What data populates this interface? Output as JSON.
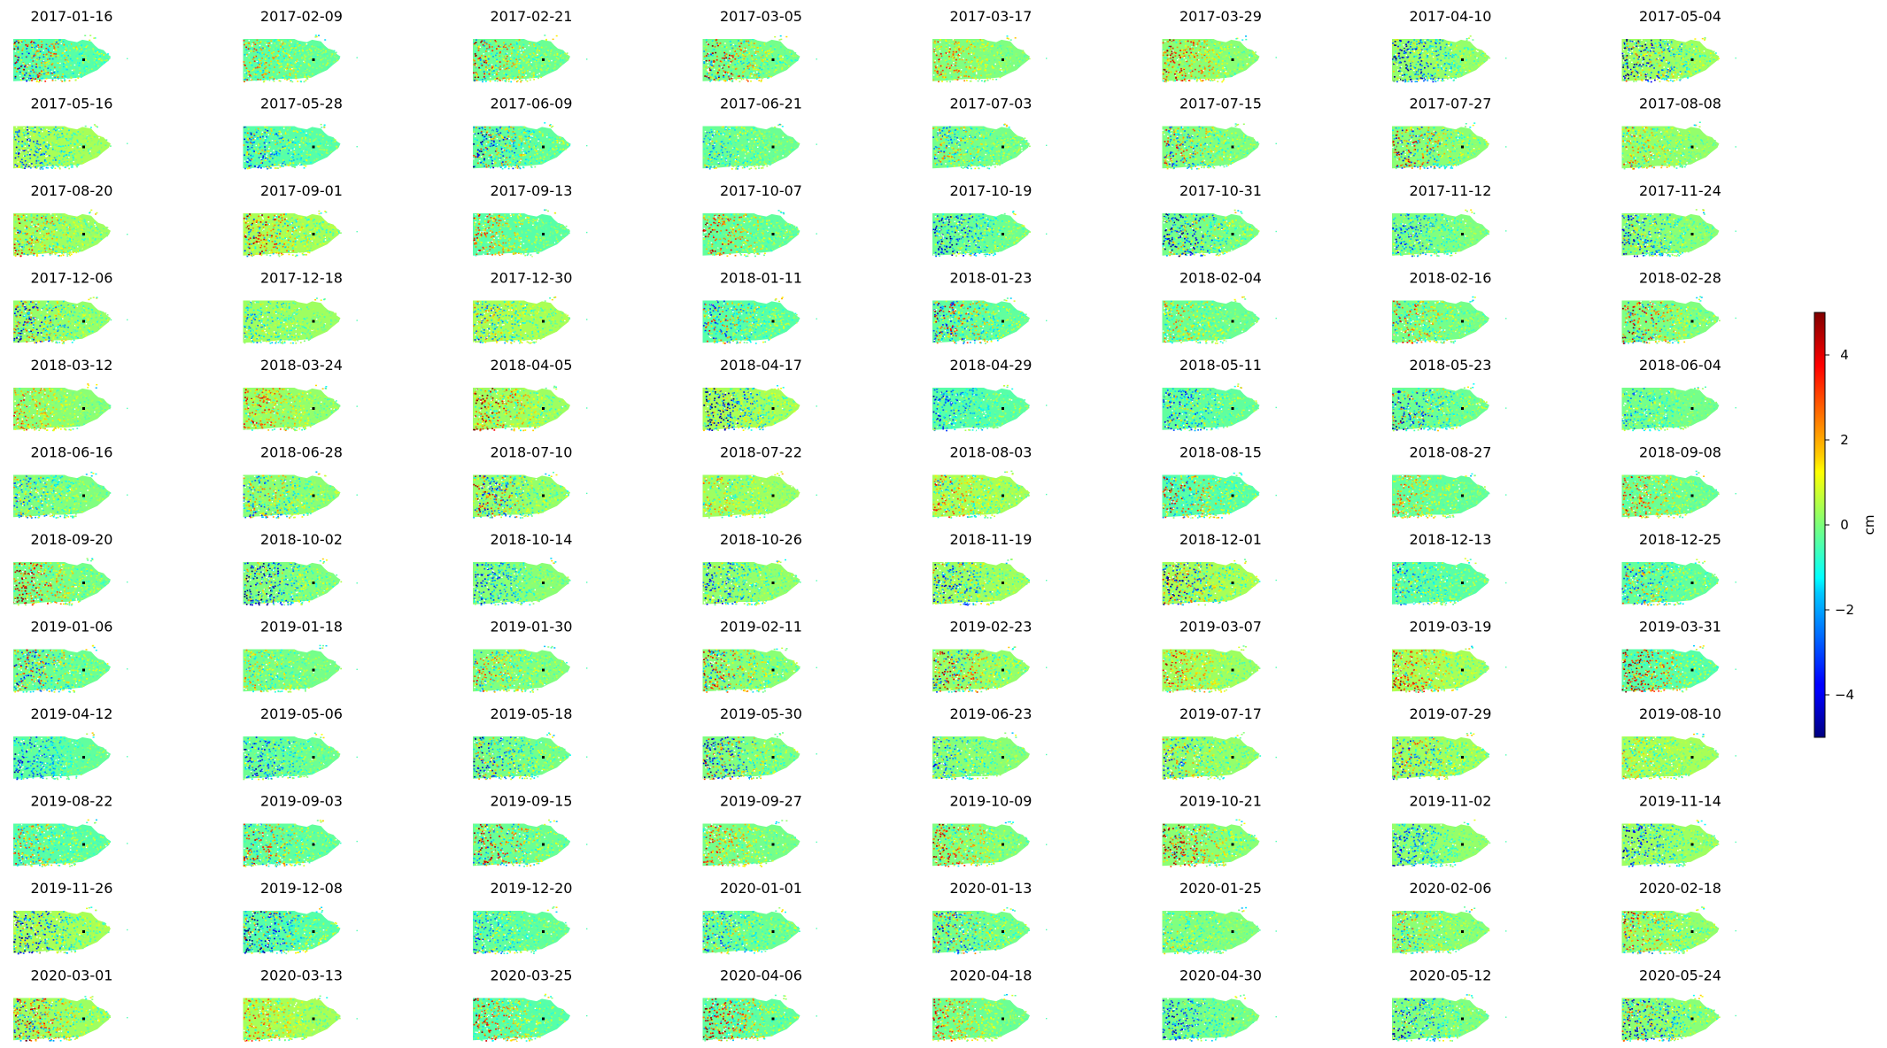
{
  "chart_data": {
    "type": "heatmap",
    "description_kind": "small-multiples displacement maps",
    "panels": [
      "2017-01-16",
      "2017-02-09",
      "2017-02-21",
      "2017-03-05",
      "2017-03-17",
      "2017-03-29",
      "2017-04-10",
      "2017-05-04",
      "2017-05-16",
      "2017-05-28",
      "2017-06-09",
      "2017-06-21",
      "2017-07-03",
      "2017-07-15",
      "2017-07-27",
      "2017-08-08",
      "2017-08-20",
      "2017-09-01",
      "2017-09-13",
      "2017-10-07",
      "2017-10-19",
      "2017-10-31",
      "2017-11-12",
      "2017-11-24",
      "2017-12-06",
      "2017-12-18",
      "2017-12-30",
      "2018-01-11",
      "2018-01-23",
      "2018-02-04",
      "2018-02-16",
      "2018-02-28",
      "2018-03-12",
      "2018-03-24",
      "2018-04-05",
      "2018-04-17",
      "2018-04-29",
      "2018-05-11",
      "2018-05-23",
      "2018-06-04",
      "2018-06-16",
      "2018-06-28",
      "2018-07-10",
      "2018-07-22",
      "2018-08-03",
      "2018-08-15",
      "2018-08-27",
      "2018-09-08",
      "2018-09-20",
      "2018-10-02",
      "2018-10-14",
      "2018-10-26",
      "2018-11-19",
      "2018-12-01",
      "2018-12-13",
      "2018-12-25",
      "2019-01-06",
      "2019-01-18",
      "2019-01-30",
      "2019-02-11",
      "2019-02-23",
      "2019-03-07",
      "2019-03-19",
      "2019-03-31",
      "2019-04-12",
      "2019-05-06",
      "2019-05-18",
      "2019-05-30",
      "2019-06-23",
      "2019-07-17",
      "2019-07-29",
      "2019-08-10",
      "2019-08-22",
      "2019-09-03",
      "2019-09-15",
      "2019-09-27",
      "2019-10-09",
      "2019-10-21",
      "2019-11-02",
      "2019-11-14",
      "2019-11-26",
      "2019-12-08",
      "2019-12-20",
      "2020-01-01",
      "2020-01-13",
      "2020-01-25",
      "2020-02-06",
      "2020-02-18",
      "2020-03-01",
      "2020-03-13",
      "2020-03-25",
      "2020-04-06",
      "2020-04-18",
      "2020-04-30",
      "2020-05-12",
      "2020-05-24"
    ],
    "colorbar": {
      "colormap": "jet",
      "range": [
        -5,
        5
      ],
      "ticks": [
        -4,
        -2,
        0,
        2,
        4
      ],
      "label": "cm"
    },
    "grid": false
  }
}
